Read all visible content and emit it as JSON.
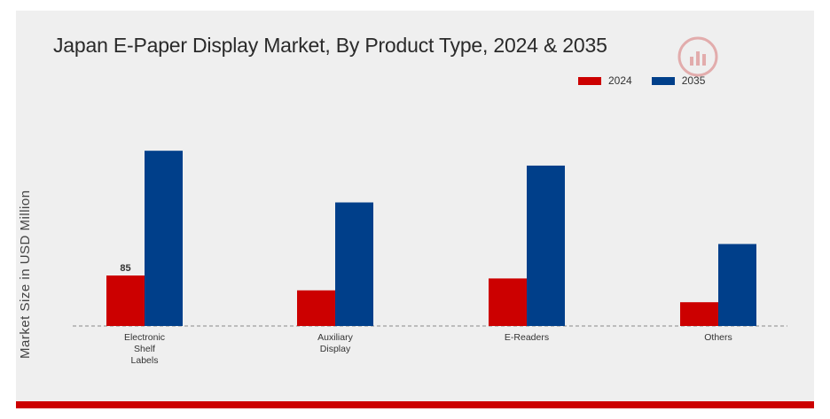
{
  "chart_data": {
    "type": "bar",
    "title": "Japan E-Paper Display Market, By Product Type, 2024 & 2035",
    "ylabel": "Market Size in USD Million",
    "xlabel": "",
    "categories": [
      "Electronic Shelf Labels",
      "Auxiliary Display",
      "E-Readers",
      "Others"
    ],
    "category_lines": [
      [
        "Electronic",
        "Shelf",
        "Labels"
      ],
      [
        "Auxiliary",
        "Display"
      ],
      [
        "E-Readers"
      ],
      [
        "Others"
      ]
    ],
    "series": [
      {
        "name": "2024",
        "color": "#cc0000",
        "values": [
          85,
          60,
          80,
          40
        ]
      },
      {
        "name": "2035",
        "color": "#003f8a",
        "values": [
          295,
          208,
          270,
          138
        ]
      }
    ],
    "data_labels": [
      {
        "series": 0,
        "index": 0,
        "text": "85"
      }
    ],
    "ylim": [
      0,
      340
    ],
    "grid": false,
    "baseline": "dashed",
    "legend_position": "top-right"
  },
  "logo": {
    "name": "watermark-logo"
  },
  "colors": {
    "background": "#efefef",
    "accent_bar": "#cc0000"
  }
}
